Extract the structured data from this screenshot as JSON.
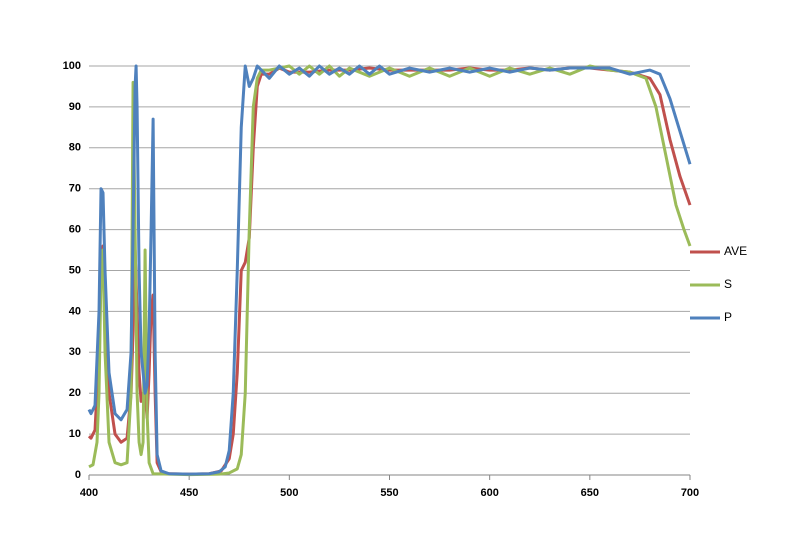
{
  "chart_data": {
    "type": "line",
    "xlim": [
      400,
      700
    ],
    "xticks": [
      400,
      450,
      500,
      550,
      600,
      650,
      700
    ],
    "ylim": [
      0,
      100
    ],
    "yticks": [
      0,
      10,
      20,
      30,
      40,
      50,
      60,
      70,
      80,
      90,
      100
    ],
    "grid": true,
    "legend": "right",
    "series": [
      {
        "name": "AVE",
        "color": "#c0504d",
        "x": [
          400,
          401,
          403,
          405,
          406,
          407,
          408,
          410,
          413,
          416,
          419,
          421,
          422,
          423,
          424,
          425,
          426,
          427,
          428,
          429,
          430,
          431,
          432,
          433,
          434,
          436,
          440,
          450,
          460,
          466,
          470,
          472,
          474,
          476,
          478,
          480,
          482,
          484,
          486,
          490,
          495,
          500,
          510,
          520,
          530,
          540,
          550,
          560,
          570,
          580,
          590,
          600,
          610,
          620,
          630,
          640,
          650,
          660,
          670,
          680,
          685,
          690,
          695,
          700
        ],
        "values": [
          9.5,
          9,
          11,
          30,
          50,
          56,
          45,
          20,
          10,
          8,
          9,
          20,
          35,
          55,
          40,
          25,
          18,
          20,
          20,
          14,
          25,
          40,
          44,
          20,
          3,
          0.8,
          0.3,
          0.2,
          0.3,
          1,
          4,
          10,
          25,
          50,
          52,
          58,
          80,
          95,
          98,
          98,
          99.5,
          98.5,
          98.5,
          99,
          99,
          99.5,
          99,
          99,
          99,
          99,
          99.5,
          99,
          99,
          99.5,
          99,
          99.5,
          99.5,
          99,
          98.5,
          97,
          93,
          82,
          73,
          66
        ]
      },
      {
        "name": "S",
        "color": "#9bbb59",
        "x": [
          400,
          402,
          404,
          405,
          406,
          407,
          408,
          410,
          413,
          416,
          419,
          421,
          422,
          423,
          424,
          425,
          426,
          427,
          428,
          429,
          430,
          432,
          440,
          450,
          465,
          470,
          474,
          476,
          478,
          480,
          482,
          484,
          486,
          490,
          495,
          500,
          505,
          510,
          515,
          520,
          525,
          530,
          540,
          550,
          560,
          570,
          580,
          590,
          600,
          610,
          620,
          630,
          640,
          650,
          660,
          670,
          678,
          683,
          688,
          693,
          697,
          700
        ],
        "values": [
          2,
          2.5,
          8,
          20,
          50,
          55,
          30,
          8,
          3,
          2.5,
          3,
          20,
          96,
          60,
          20,
          8,
          5,
          8,
          55,
          15,
          3,
          0.3,
          0.2,
          0.1,
          0.2,
          0.5,
          1.5,
          5,
          20,
          60,
          90,
          97,
          99,
          99,
          99.5,
          100,
          98,
          100,
          98,
          100,
          97.5,
          99.5,
          97.5,
          99.5,
          97.5,
          99.5,
          97.5,
          99.5,
          97.5,
          99.5,
          98,
          99.5,
          98,
          100,
          99,
          98.5,
          97,
          90,
          78,
          66,
          60,
          56
        ]
      },
      {
        "name": "P",
        "color": "#4f81bd",
        "x": [
          400,
          401,
          403,
          405,
          406,
          407,
          408,
          410,
          413,
          416,
          419,
          421,
          422,
          423,
          423.5,
          424,
          425,
          426,
          428,
          429,
          430,
          431,
          432,
          433,
          434,
          436,
          440,
          450,
          460,
          465,
          468,
          470,
          472,
          474,
          476,
          478,
          480,
          482,
          484,
          486,
          490,
          495,
          500,
          505,
          510,
          515,
          520,
          525,
          530,
          535,
          540,
          545,
          550,
          560,
          570,
          580,
          590,
          600,
          610,
          620,
          630,
          640,
          650,
          660,
          670,
          680,
          685,
          690,
          695,
          700
        ],
        "values": [
          16,
          15,
          17,
          40,
          70,
          69,
          50,
          25,
          15,
          13.5,
          16,
          30,
          60,
          95,
          100,
          90,
          50,
          30,
          20,
          22,
          35,
          60,
          87,
          30,
          5,
          1,
          0.3,
          0.2,
          0.3,
          0.8,
          2,
          6,
          20,
          50,
          85,
          100,
          95,
          97,
          100,
          99,
          97,
          100,
          98,
          99.5,
          97.5,
          100,
          98,
          99.5,
          98,
          100,
          98,
          100,
          98,
          99.5,
          98.5,
          99.5,
          98.5,
          99.5,
          98.5,
          99.5,
          99,
          99.5,
          99.5,
          99.5,
          98,
          99,
          98,
          92,
          84,
          76
        ]
      }
    ]
  }
}
